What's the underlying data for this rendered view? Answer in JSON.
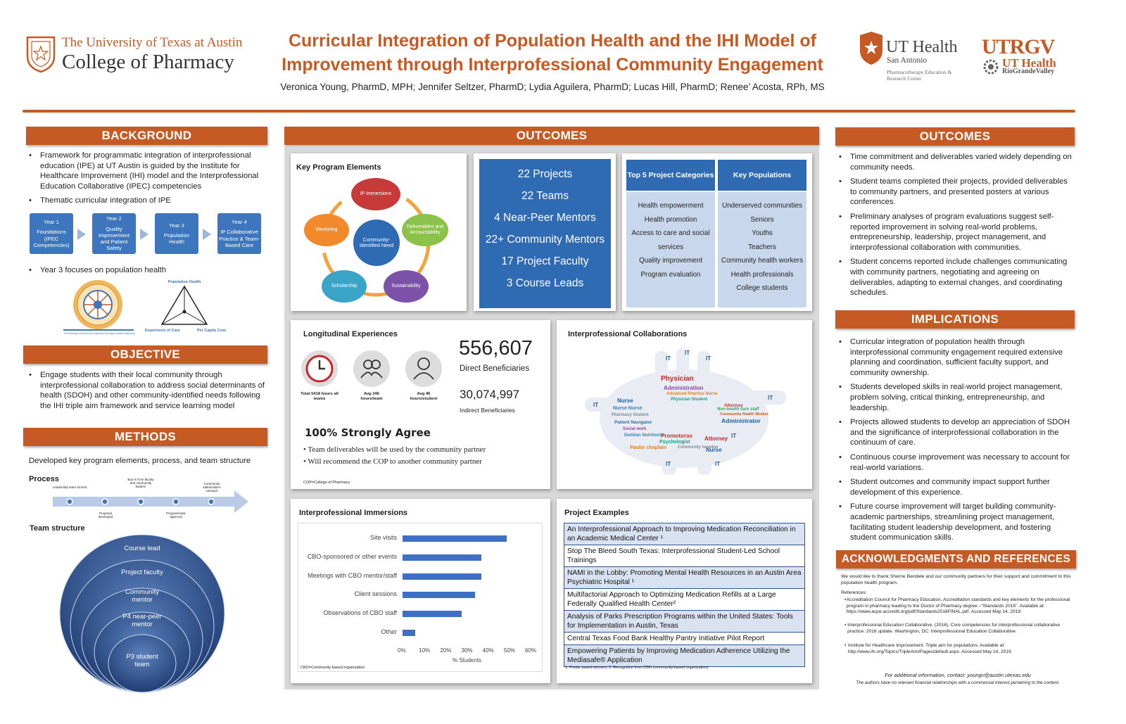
{
  "header": {
    "ut_line1": "The University of Texas at Austin",
    "ut_line2": "College of Pharmacy",
    "title_line1": "Curricular Integration of Population Health and the IHI Model of",
    "title_line2": "Improvement through Interprofessional Community Engagement",
    "authors": "Veronica Young, PharmD, MPH; Jennifer Seltzer, PharmD; Lydia Aguilera, PharmD; Lucas Hill, PharmD; Renee’ Acosta, RPh, MS",
    "uth_name": "UT Health",
    "uth_sub": "San Antonio",
    "uth_sub2": "Pharmacotherapy Education & Research Center",
    "utrgv": "UTRGV",
    "utrgv_h1": "UT Health",
    "utrgv_h2": "RioGrandeValley"
  },
  "background": {
    "title": "BACKGROUND",
    "b1": "Framework for programmatic integration of interprofessional education (IPE) at UT Austin is guided by the Institute for Healthcare Improvement (IHI) model and the Interprofessional Education Collaborative (IPEC) competencies",
    "b2": "Thematic curricular integration of IPE",
    "years": [
      {
        "t": "Year 1",
        "d": "Foundations (IPEC Competencies)"
      },
      {
        "t": "Year 2",
        "d": "Quality Improvement and Patient Safety"
      },
      {
        "t": "Year 3",
        "d": "Population Health"
      },
      {
        "t": "Year 4",
        "d": "IP Collaborative Practice & Team-Based Care"
      }
    ],
    "b3": "Year 3 focuses on population health",
    "tri_top": "Population Health",
    "tri_left": "Experience of Care",
    "tri_right": "Per Capita Cost",
    "wheel_caption": "The learning continuum pre-licensure through practice trajectory"
  },
  "objective": {
    "title": "OBJECTIVE",
    "b1": "Engage students with their local community through interprofessional collaboration to address social determinants of health (SDOH) and other community-identified needs following the IHI triple aim framework and service learning model"
  },
  "methods": {
    "title": "METHODS",
    "intro": "Developed key program elements, process, and team structure",
    "process_label": "Process",
    "process_top": [
      "Leadership team formed",
      "Buy-in from faculty and community leaders",
      "Community stakeholders outreach"
    ],
    "process_bottom": [
      "Proposal developed",
      "Programmatic approval"
    ],
    "team_label": "Team structure",
    "team": [
      "Course lead",
      "Project faculty",
      "Community mentor",
      "P4 near-peer mentor",
      "P3 student team"
    ]
  },
  "outcomes_mid": {
    "title": "OUTCOMES",
    "kpe_title": "Key Program Elements",
    "kpe_center": "Community-Identified Need",
    "kpe_nodes": [
      "IP Immersions",
      "Deliverables and Accountability",
      "Sustainability",
      "Scholarship",
      "Mentoring"
    ],
    "stats": [
      "22 Projects",
      "22 Teams",
      "4 Near-Peer Mentors",
      "22+ Community Mentors",
      "17 Project Faculty",
      "3 Course Leads"
    ],
    "cat_head": "Top 5 Project Categories",
    "pop_head": "Key Populations",
    "categories": [
      "Health empowerment",
      "Health promotion",
      "Access to care and social",
      "services",
      "Quality improvement",
      "Program evaluation"
    ],
    "populations": [
      "Underserved communities",
      "Seniors",
      "Youths",
      "Teachers",
      "Community health workers",
      "Health professionals",
      "College students"
    ],
    "long_title": "Longitudinal Experiences",
    "long_icons": [
      "Total 5418 hours all teams",
      "Avg 246 hours/team",
      "Avg 46 hours/student"
    ],
    "direct_num": "556,607",
    "direct_lab": "Direct Beneficiaries",
    "indirect_num": "30,074,997",
    "indirect_lab": "Indirect Beneficiaries",
    "agree_title": "100% Strongly Agree",
    "agree_items": [
      "Team deliverables will be used by the community partner",
      "Will recommend the COP to another community partner"
    ],
    "cop_note": "COP=College of Pharmacy",
    "ipc_title": "Interprofessional Collaborations",
    "ipi_title": "Interprofessional Immersions",
    "proj_title": "Project Examples",
    "projects": [
      "An Interprofessional Approach to Improving Medication Reconciliation in an Academic Medical Center ¹",
      "Stop The Bleed South Texas: Interprofessional Student-Led School Trainings",
      "NAMI in the Lobby: Promoting Mental Health Resources in an Austin Area Psychiatric Hospital ¹",
      "Multifactorial Approach to Optimizing Medication Refills at a Large Federally Qualified Health Center²",
      "Analysis of Parks Prescription Programs within the United States: Tools for Implementation in Austin, Texas",
      "Central Texas Food Bank Healthy Pantry Initiative Pilot Report",
      "Empowering Patients by Improving Medication Adherence Utilizing the Mediasafe® Application"
    ],
    "proj_note": "1. Poster award winners;  2. Recognition from CBO (community-based organization)",
    "cbo_note": "CBO=Community-based organization"
  },
  "wordcloud": [
    "Physician",
    "Administration",
    "Advanced Practice Nurse",
    "Nurse",
    "Physician Student",
    "Nurse Nurse",
    "Pharmacy Student",
    "Patient Navigator",
    "Attorney",
    "Non-health care staff",
    "Community Health Worker",
    "Administrator",
    "Social work",
    "Dietitian Nutritionist",
    "Promotoras",
    "Psychologist",
    "Pastor chaplain",
    "Community member",
    "Nurse",
    "Attorney",
    "IT",
    "IT",
    "IT",
    "IT",
    "IT",
    "IT",
    "IT",
    "IT"
  ],
  "chart_data": {
    "type": "bar",
    "orientation": "horizontal",
    "title": "Interprofessional Immersions",
    "categories": [
      "Site visits",
      "CBO-sponsored or other events",
      "Meetings with CBO mentor/staff",
      "Client sessions",
      "Observations of CBO staff",
      "Other"
    ],
    "values": [
      49,
      37,
      37,
      34,
      28,
      6
    ],
    "xlabel": "% Students",
    "xlim": [
      0,
      60
    ],
    "xticks": [
      "0%",
      "10%",
      "20%",
      "30%",
      "40%",
      "50%",
      "60%"
    ],
    "bar_color": "#3e6fc2"
  },
  "outcomes_right": {
    "title": "OUTCOMES",
    "items": [
      "Time commitment and deliverables varied widely depending on community needs.",
      "Student teams completed their projects, provided deliverables to community partners, and presented posters at various conferences.",
      "Preliminary analyses of program evaluations suggest self-reported improvement in solving real-world problems, entrepreneurship, leadership, project management, and interprofessional collaboration with communities.",
      "Student concerns reported include challenges communicating with community partners, negotiating and agreeing on deliverables, adapting to external changes, and coordinating schedules."
    ]
  },
  "implications": {
    "title": "IMPLICATIONS",
    "items": [
      "Curricular integration of population health through interprofessional community engagement required extensive planning and coordination, sufficient faculty support, and community ownership.",
      "Students developed skills in real-world project management, problem solving, critical thinking, entrepreneurship, and leadership.",
      "Projects allowed students to develop an appreciation of SDOH and the significance of interprofessional collaboration in the continuum of care.",
      "Continuous course improvement was necessary to account for real-world variations.",
      "Student outcomes and community impact support further development of this experience.",
      "Future course improvement will target building community-academic partnerships, streamlining project management, facilitating student leadership development, and fostering student communication skills."
    ]
  },
  "ack": {
    "title": "ACKNOWLEDGMENTS AND REFERENCES",
    "thanks": "We would like to thank Sherrie Bendele and our community partners for their support and commitment to this population health program.",
    "refs_label": "References:",
    "refs": [
      "Accreditation Council for Pharmacy Education.  Accreditation standards and key elements for the professional program in pharmacy leading to the Doctor of Pharmacy degree –“Standards 2016”. Available at: https://www.acpe-accredit.org/pdf/Standards2016FINAL.pdf. Accessed May 14, 2019.",
      "Interprofessional Education Collaborative. (2016).  Core competencies for interprofessional collaborative practice: 2016 update. Washington, DC: Interprofessional Education Collaborative.",
      "Institute for Healthcare Improvement.  Triple aim for populations.  Available at:  http://www.ihi.org/Topics/TripleAim/Pages/default.aspx.  Accessed May 14, 2019."
    ],
    "contact": "For additional information, contact:  youngv@austin.utexas.edu",
    "disclosure": "The authors have no relevant financial relationships with a commercial interest pertaining to the content."
  },
  "colors": {
    "accent": "#c65a24",
    "blue": "#3d76bc",
    "lightblue": "#c9d7ec"
  }
}
